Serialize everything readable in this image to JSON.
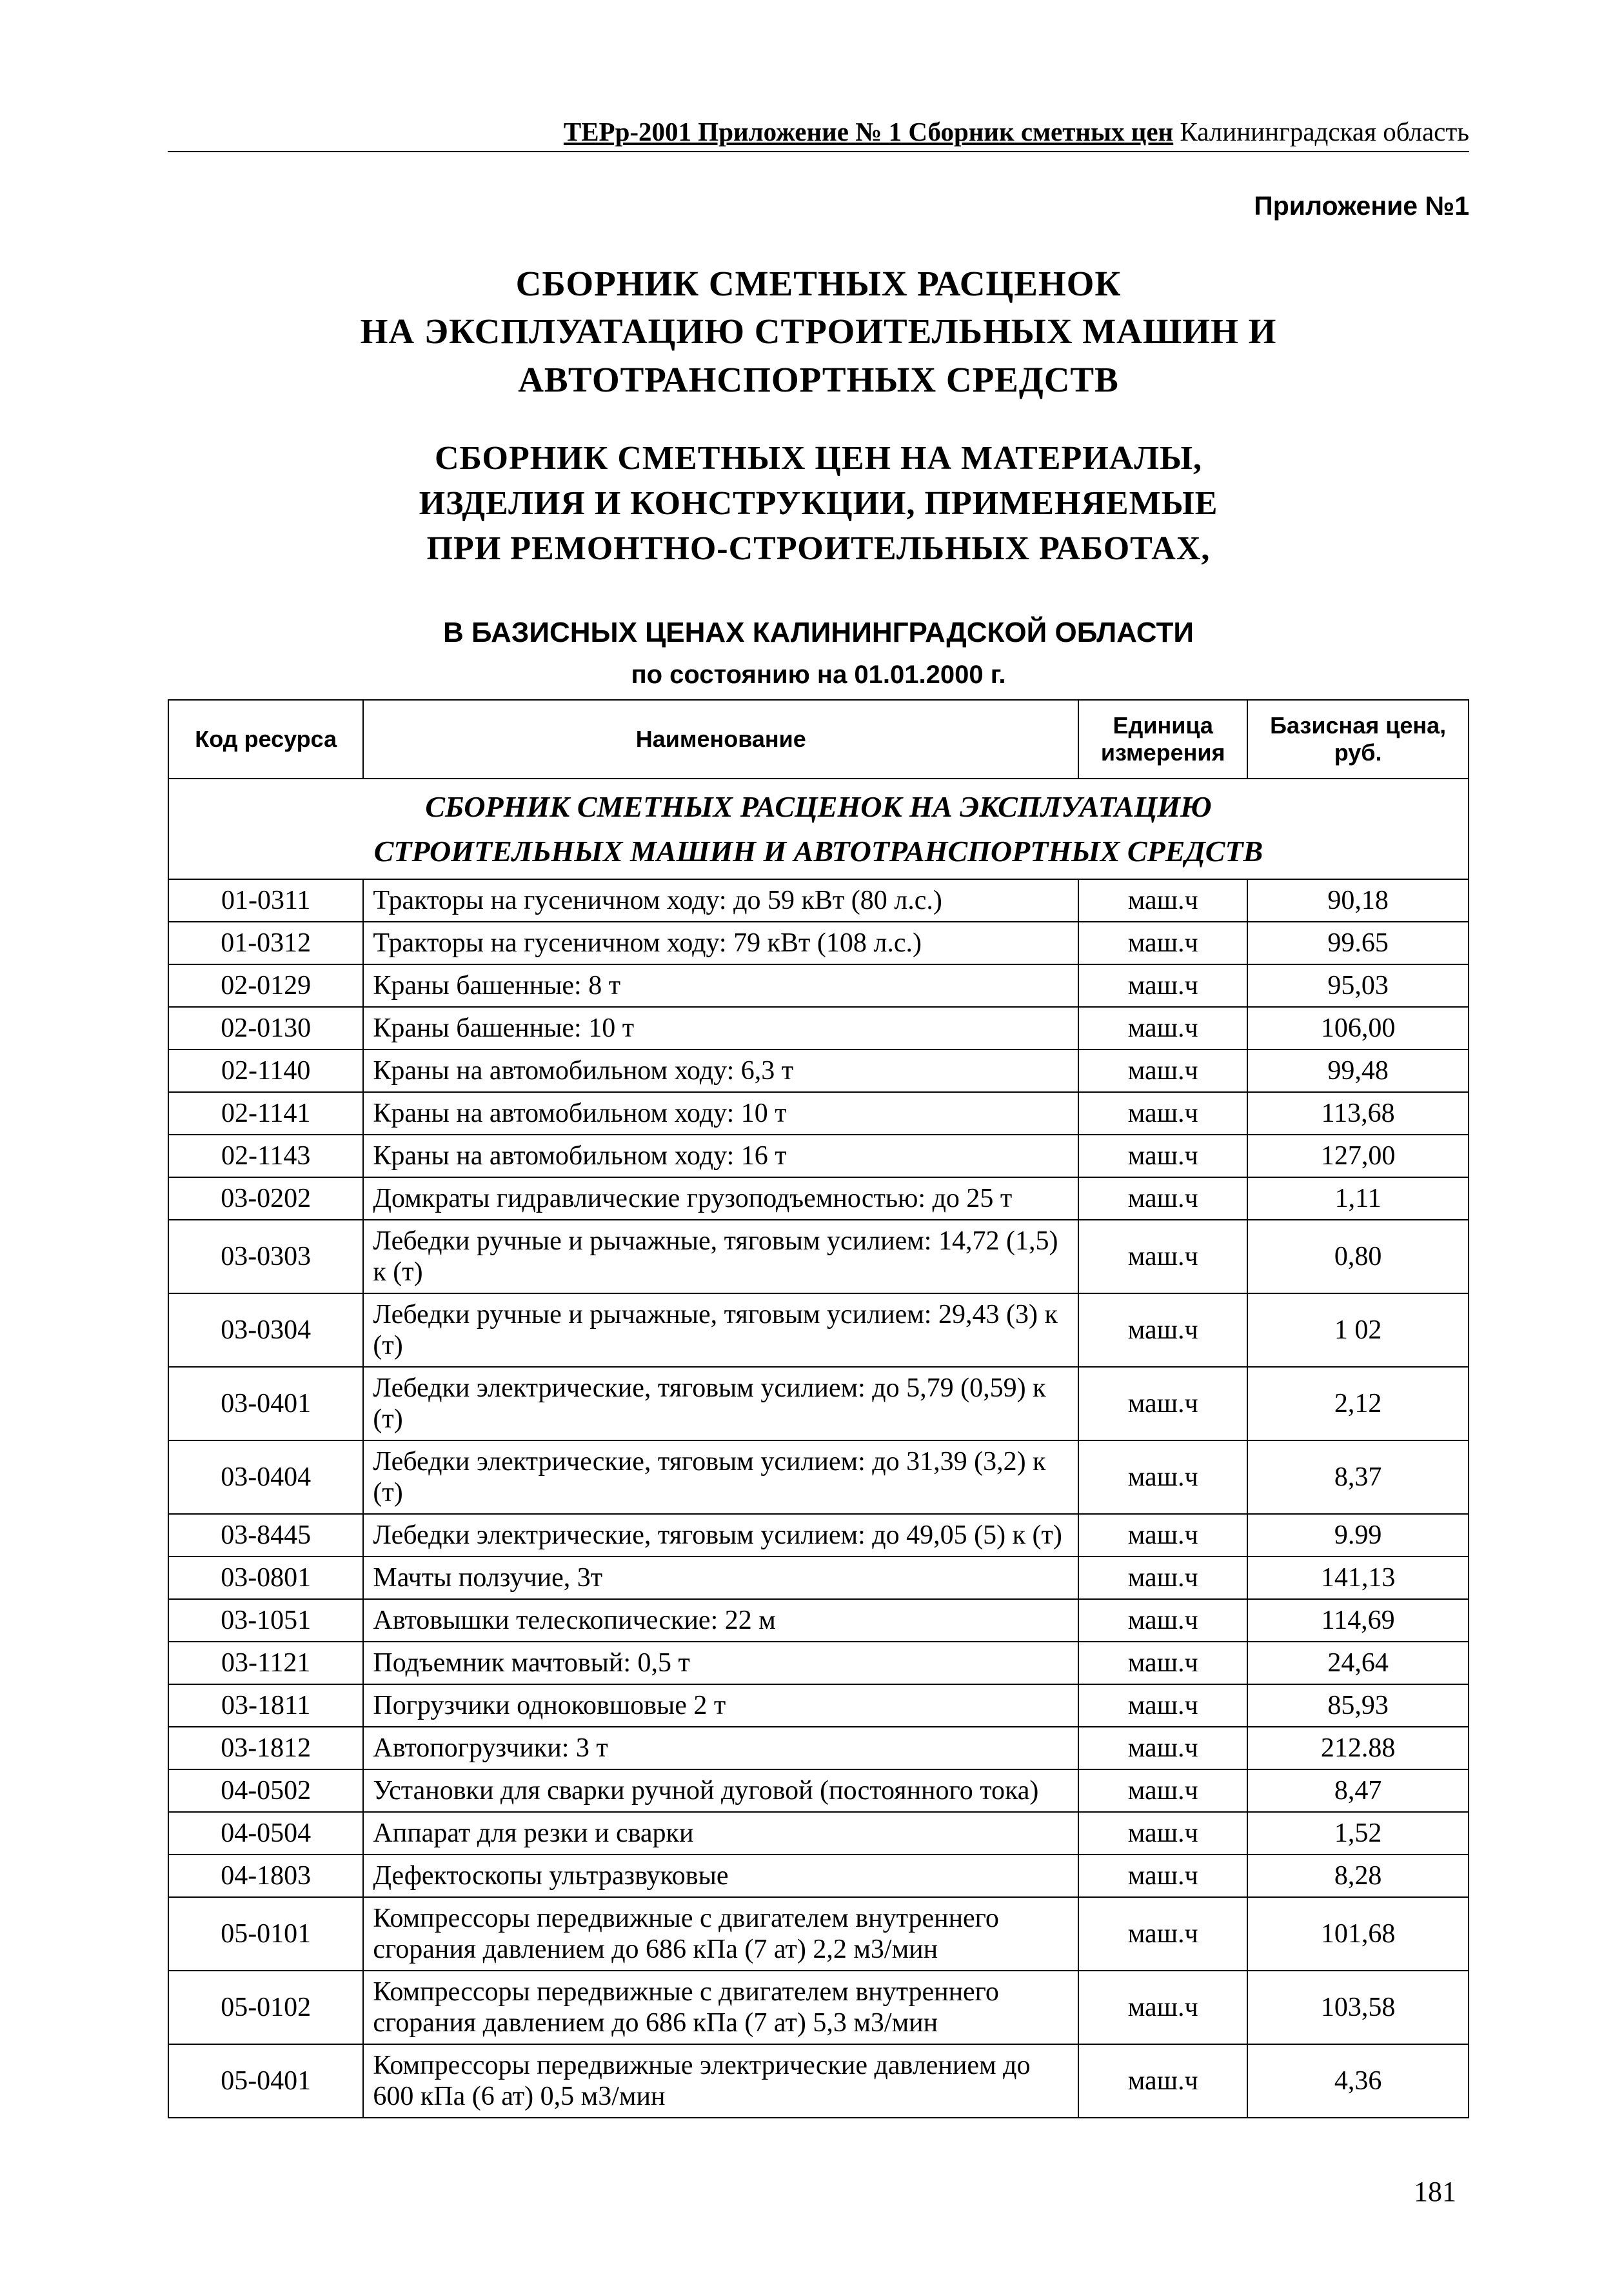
{
  "header": {
    "bold_part": "ТЕРр-2001 Приложение № 1 Сборник сметных цен",
    "plain_part": "  Калининградская область"
  },
  "attachment_label": "Приложение №1",
  "title1_line1": "СБОРНИК  СМЕТНЫХ  РАСЦЕНОК",
  "title1_line2": "НА  ЭКСПЛУАТАЦИЮ  СТРОИТЕЛЬНЫХ  МАШИН  И",
  "title1_line3": "АВТОТРАНСПОРТНЫХ  СРЕДСТВ",
  "title2_line1": "СБОРНИК  СМЕТНЫХ  ЦЕН НА  МАТЕРИАЛЫ,",
  "title2_line2": "ИЗДЕЛИЯ  И  КОНСТРУКЦИИ,  ПРИМЕНЯЕМЫЕ",
  "title2_line3": "ПРИ  РЕМОНТНО-СТРОИТЕЛЬНЫХ  РАБОТАХ,",
  "region_line": "В БАЗИСНЫХ ЦЕНАХ КАЛИНИНГРАДСКОЙ ОБЛАСТИ",
  "date_line": "по состоянию на 01.01.2000 г.",
  "table": {
    "columns": [
      "Код ресурса",
      "Наименование",
      "Единица измерения",
      "Базисная цена, руб."
    ],
    "section_header_line1": "СБОРНИК СМЕТНЫХ РАСЦЕНОК НА ЭКСПЛУАТАЦИЮ",
    "section_header_line2": "СТРОИТЕЛЬНЫХ МАШИН И АВТОТРАНСПОРТНЫХ СРЕДСТВ",
    "rows": [
      {
        "code": "01-0311",
        "name": "Тракторы на гусеничном ходу:  до 59 кВт  (80 л.с.)",
        "unit": "маш.ч",
        "price": "90,18"
      },
      {
        "code": "01-0312",
        "name": "Тракторы на гусеничном ходу:  79 кВт  (108 л.с.)",
        "unit": "маш.ч",
        "price": "99.65"
      },
      {
        "code": "02-0129",
        "name": "Краны башенные:  8 т",
        "unit": "маш.ч",
        "price": "95,03"
      },
      {
        "code": "02-0130",
        "name": "Краны башенные:  10 т",
        "unit": "маш.ч",
        "price": "106,00"
      },
      {
        "code": "02-1140",
        "name": "Краны на автомобильном ходу:  6,3 т",
        "unit": "маш.ч",
        "price": "99,48"
      },
      {
        "code": "02-1141",
        "name": "Краны на автомобильном ходу:  10 т",
        "unit": "маш.ч",
        "price": "113,68"
      },
      {
        "code": "02-1143",
        "name": "Краны на автомобильном ходу:  16 т",
        "unit": "маш.ч",
        "price": "127,00"
      },
      {
        "code": "03-0202",
        "name": "Домкраты гидравлические грузоподъемностью:  до  25 т",
        "unit": "маш.ч",
        "price": "1,11"
      },
      {
        "code": "03-0303",
        "name": "Лебедки ручные и рычажные, тяговым усилием:  14,72 (1,5) к (т)",
        "unit": "маш.ч",
        "price": "0,80"
      },
      {
        "code": "03-0304",
        "name": "Лебедки ручные и рычажные, тяговым усилием:  29,43 (3) к (т)",
        "unit": "маш.ч",
        "price": "1 02"
      },
      {
        "code": "03-0401",
        "name": "Лебедки электрические, тяговым усилием:  до  5,79 (0,59) к (т)",
        "unit": "маш.ч",
        "price": "2,12"
      },
      {
        "code": "03-0404",
        "name": "Лебедки электрические, тяговым усилием:  до  31,39 (3,2) к (т)",
        "unit": "маш.ч",
        "price": "8,37"
      },
      {
        "code": "03-8445",
        "name": "Лебедки электрические, тяговым усилием:  до  49,05 (5) к (т)",
        "unit": "маш.ч",
        "price": "9.99"
      },
      {
        "code": "03-0801",
        "name": "Мачты ползучие,  3т",
        "unit": "маш.ч",
        "price": "141,13"
      },
      {
        "code": "03-1051",
        "name": "Автовышки телескопические:  22 м",
        "unit": "маш.ч",
        "price": "114,69"
      },
      {
        "code": "03-1121",
        "name": "Подъемник мачтовый:  0,5 т",
        "unit": "маш.ч",
        "price": "24,64"
      },
      {
        "code": "03-1811",
        "name": "Погрузчики  одноковшовые 2 т",
        "unit": "маш.ч",
        "price": "85,93"
      },
      {
        "code": "03-1812",
        "name": "Автопогрузчики:  3 т",
        "unit": "маш.ч",
        "price": "212.88"
      },
      {
        "code": "04-0502",
        "name": "Установки для сварки ручной дуговой (постоянного тока)",
        "unit": "маш.ч",
        "price": "8,47"
      },
      {
        "code": "04-0504",
        "name": "Аппарат для резки и сварки",
        "unit": "маш.ч",
        "price": "1,52"
      },
      {
        "code": "04-1803",
        "name": "Дефектоскопы ультразвуковые",
        "unit": "маш.ч",
        "price": "8,28"
      },
      {
        "code": "05-0101",
        "name": "Компрессоры передвижные с двигателем внутреннего сгорания давлением до 686 кПа  (7 ат)  2,2 м3/мин",
        "unit": "маш.ч",
        "price": "101,68"
      },
      {
        "code": "05-0102",
        "name": "Компрессоры передвижные с двигателем внутреннего сгорания давлением до 686 кПа  (7 ат)  5,3 м3/мин",
        "unit": "маш.ч",
        "price": "103,58"
      },
      {
        "code": "05-0401",
        "name": "Компрессоры передвижные электрические давлением до 600 кПа  (6 ат)  0,5 м3/мин",
        "unit": "маш.ч",
        "price": "4,36"
      }
    ]
  },
  "page_number": "181"
}
